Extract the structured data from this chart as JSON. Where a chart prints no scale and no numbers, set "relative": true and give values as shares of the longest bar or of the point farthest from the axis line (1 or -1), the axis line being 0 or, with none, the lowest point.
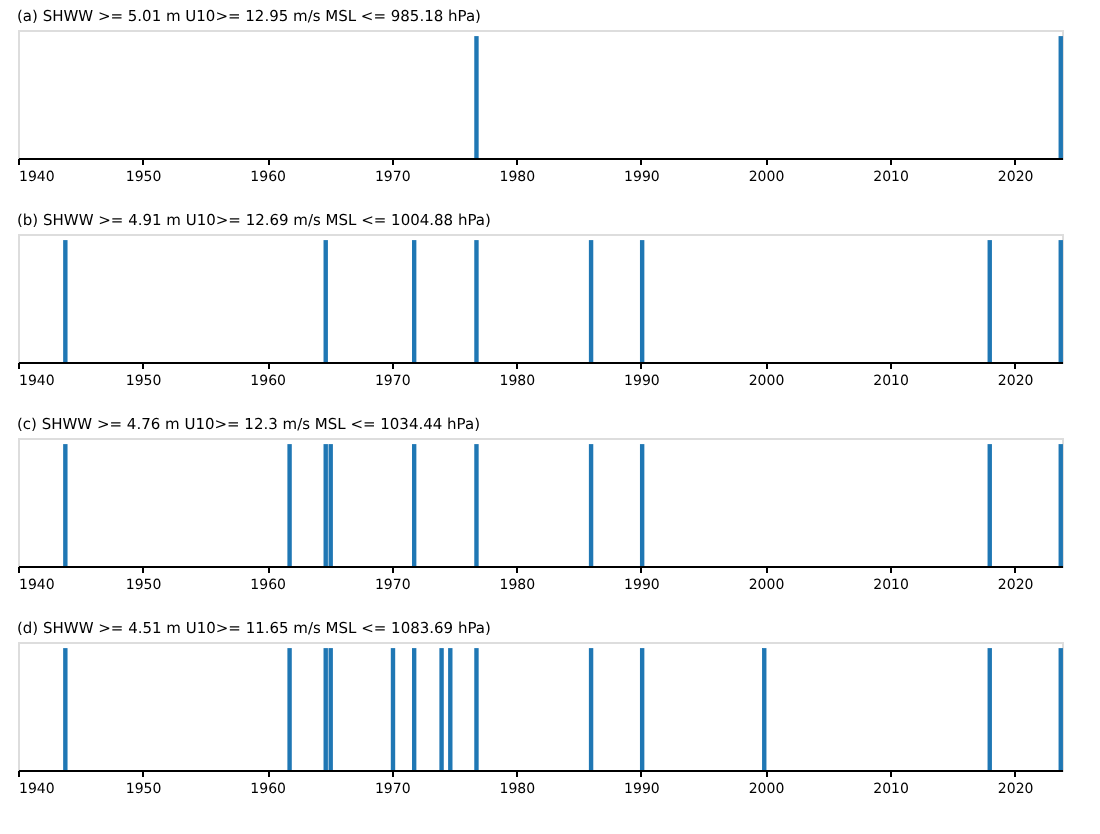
{
  "chart_data": [
    {
      "type": "bar",
      "title": "(a) SHWW >= 5.01 m U10>= 12.95 m/s MSL <= 985.18 hPa)",
      "relative": true,
      "x": [
        1976.8,
        2023.7
      ],
      "values": [
        1,
        1
      ],
      "color": "#1f77b4",
      "xlim": [
        1940,
        2023.8
      ],
      "xticks": [
        1940,
        1950,
        1960,
        1970,
        1980,
        1990,
        2000,
        2010,
        2020
      ],
      "grid": false
    },
    {
      "type": "bar",
      "title": "(b) SHWW >= 4.91 m U10>= 12.69 m/s MSL <= 1004.88 hPa)",
      "relative": true,
      "x": [
        1943.8,
        1964.7,
        1971.8,
        1976.8,
        1986.0,
        1990.1,
        2018.0,
        2023.7
      ],
      "values": [
        1,
        1,
        1,
        1,
        1,
        1,
        1,
        1
      ],
      "color": "#1f77b4",
      "xlim": [
        1940,
        2023.8
      ],
      "xticks": [
        1940,
        1950,
        1960,
        1970,
        1980,
        1990,
        2000,
        2010,
        2020
      ],
      "grid": false
    },
    {
      "type": "bar",
      "title": "(c) SHWW >= 4.76 m U10>= 12.3 m/s MSL <= 1034.44 hPa)",
      "relative": true,
      "x": [
        1943.8,
        1961.8,
        1964.7,
        1965.1,
        1971.8,
        1976.8,
        1986.0,
        1990.1,
        2018.0,
        2023.7
      ],
      "values": [
        1,
        1,
        1,
        1,
        1,
        1,
        1,
        1,
        1,
        1
      ],
      "color": "#1f77b4",
      "xlim": [
        1940,
        2023.8
      ],
      "xticks": [
        1940,
        1950,
        1960,
        1970,
        1980,
        1990,
        2000,
        2010,
        2020
      ],
      "grid": false
    },
    {
      "type": "bar",
      "title": "(d) SHWW >= 4.51 m U10>= 11.65 m/s MSL <= 1083.69 hPa)",
      "relative": true,
      "x": [
        1943.8,
        1961.8,
        1964.7,
        1965.1,
        1970.1,
        1971.8,
        1974.0,
        1974.7,
        1976.8,
        1986.0,
        1990.1,
        1999.9,
        2018.0,
        2023.7
      ],
      "values": [
        1,
        1,
        1,
        1,
        1,
        1,
        1,
        1,
        1,
        1,
        1,
        1,
        1,
        1
      ],
      "color": "#1f77b4",
      "xlim": [
        1940,
        2023.8
      ],
      "xticks": [
        1940,
        1950,
        1960,
        1970,
        1980,
        1990,
        2000,
        2010,
        2020
      ],
      "grid": false
    }
  ]
}
